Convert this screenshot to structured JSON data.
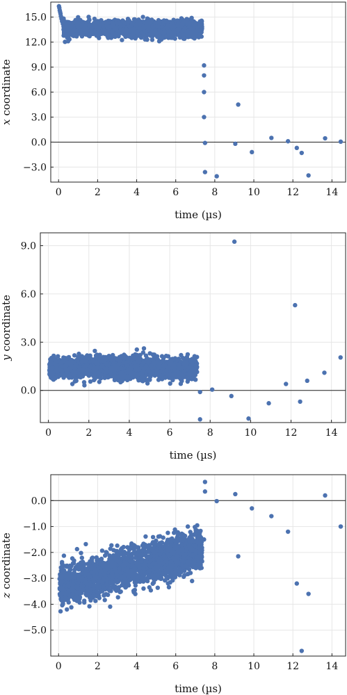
{
  "marker_color": "#4c72b0",
  "chart_data": [
    {
      "type": "scatter",
      "panel": "x",
      "xlabel": "time (µs)",
      "ylabel_var": "x",
      "ylabel_rest": " coordinate",
      "xlim": [
        -0.4,
        14.7
      ],
      "ylim": [
        -4.8,
        16.8
      ],
      "xticks": [
        0,
        2,
        4,
        6,
        8,
        10,
        12,
        14
      ],
      "yticks": [
        -3.0,
        0.0,
        3.0,
        6.0,
        9.0,
        12.0,
        15.0
      ],
      "zero_line": true,
      "grid": true,
      "dense_band": {
        "x_start": 0.25,
        "x_end": 7.35,
        "center": 13.6,
        "spread": 0.45
      },
      "early_points": [
        [
          0.02,
          16.3
        ],
        [
          0.04,
          16.1
        ],
        [
          0.06,
          15.8
        ],
        [
          0.08,
          15.6
        ],
        [
          0.1,
          15.4
        ],
        [
          0.12,
          15.1
        ],
        [
          0.15,
          14.8
        ],
        [
          0.18,
          14.5
        ],
        [
          0.22,
          14.2
        ]
      ],
      "sparse_points": [
        [
          7.45,
          9.2
        ],
        [
          7.45,
          8.0
        ],
        [
          7.45,
          6.0
        ],
        [
          7.45,
          3.0
        ],
        [
          7.5,
          -0.1
        ],
        [
          7.5,
          -3.6
        ],
        [
          8.1,
          -4.1
        ],
        [
          9.05,
          -0.2
        ],
        [
          9.2,
          4.5
        ],
        [
          9.9,
          -1.2
        ],
        [
          10.9,
          0.5
        ],
        [
          11.75,
          0.1
        ],
        [
          12.2,
          -0.7
        ],
        [
          12.45,
          -1.3
        ],
        [
          12.8,
          -4.0
        ],
        [
          13.65,
          0.45
        ],
        [
          14.45,
          0.05
        ]
      ]
    },
    {
      "type": "scatter",
      "panel": "y",
      "xlabel": "time (µs)",
      "ylabel_var": "y",
      "ylabel_rest": " coordinate",
      "xlim": [
        -0.4,
        14.7
      ],
      "ylim": [
        -2.0,
        9.8
      ],
      "xticks": [
        0,
        2,
        4,
        6,
        8,
        10,
        12,
        14
      ],
      "yticks": [
        0.0,
        3.0,
        6.0,
        9.0
      ],
      "zero_line": true,
      "grid": true,
      "dense_band": {
        "x_start": 0.05,
        "x_end": 7.35,
        "center": 1.4,
        "spread": 0.32
      },
      "early_points": [],
      "sparse_points": [
        [
          7.5,
          -0.1
        ],
        [
          7.5,
          -1.8
        ],
        [
          8.1,
          0.05
        ],
        [
          9.05,
          -0.35
        ],
        [
          9.2,
          9.25
        ],
        [
          9.9,
          -1.75
        ],
        [
          10.9,
          -0.8
        ],
        [
          11.75,
          0.4
        ],
        [
          12.2,
          5.3
        ],
        [
          12.45,
          -0.7
        ],
        [
          12.8,
          0.6
        ],
        [
          13.65,
          1.1
        ],
        [
          14.45,
          2.05
        ]
      ]
    },
    {
      "type": "scatter",
      "panel": "z",
      "xlabel": "time (µs)",
      "ylabel_var": "z",
      "ylabel_rest": " coordinate",
      "xlim": [
        -0.4,
        14.7
      ],
      "ylim": [
        -6.0,
        1.0
      ],
      "xticks": [
        0,
        2,
        4,
        6,
        8,
        10,
        12,
        14
      ],
      "yticks": [
        -5.0,
        -4.0,
        -3.0,
        -2.0,
        -1.0,
        0.0
      ],
      "zero_line": true,
      "grid": true,
      "dense_band": {
        "x_start": 0.05,
        "x_end": 7.35,
        "center_start": -3.3,
        "center_end": -1.9,
        "spread": 0.38
      },
      "early_points": [],
      "sparse_points": [
        [
          7.45,
          -1.5
        ],
        [
          7.5,
          0.35
        ],
        [
          7.5,
          0.72
        ],
        [
          8.1,
          -0.02
        ],
        [
          9.05,
          0.25
        ],
        [
          9.2,
          -2.15
        ],
        [
          9.9,
          -0.3
        ],
        [
          10.9,
          -0.6
        ],
        [
          11.75,
          -1.2
        ],
        [
          12.2,
          -3.2
        ],
        [
          12.45,
          -5.8
        ],
        [
          12.8,
          -3.6
        ],
        [
          13.65,
          0.2
        ],
        [
          14.45,
          -1.0
        ]
      ]
    }
  ]
}
